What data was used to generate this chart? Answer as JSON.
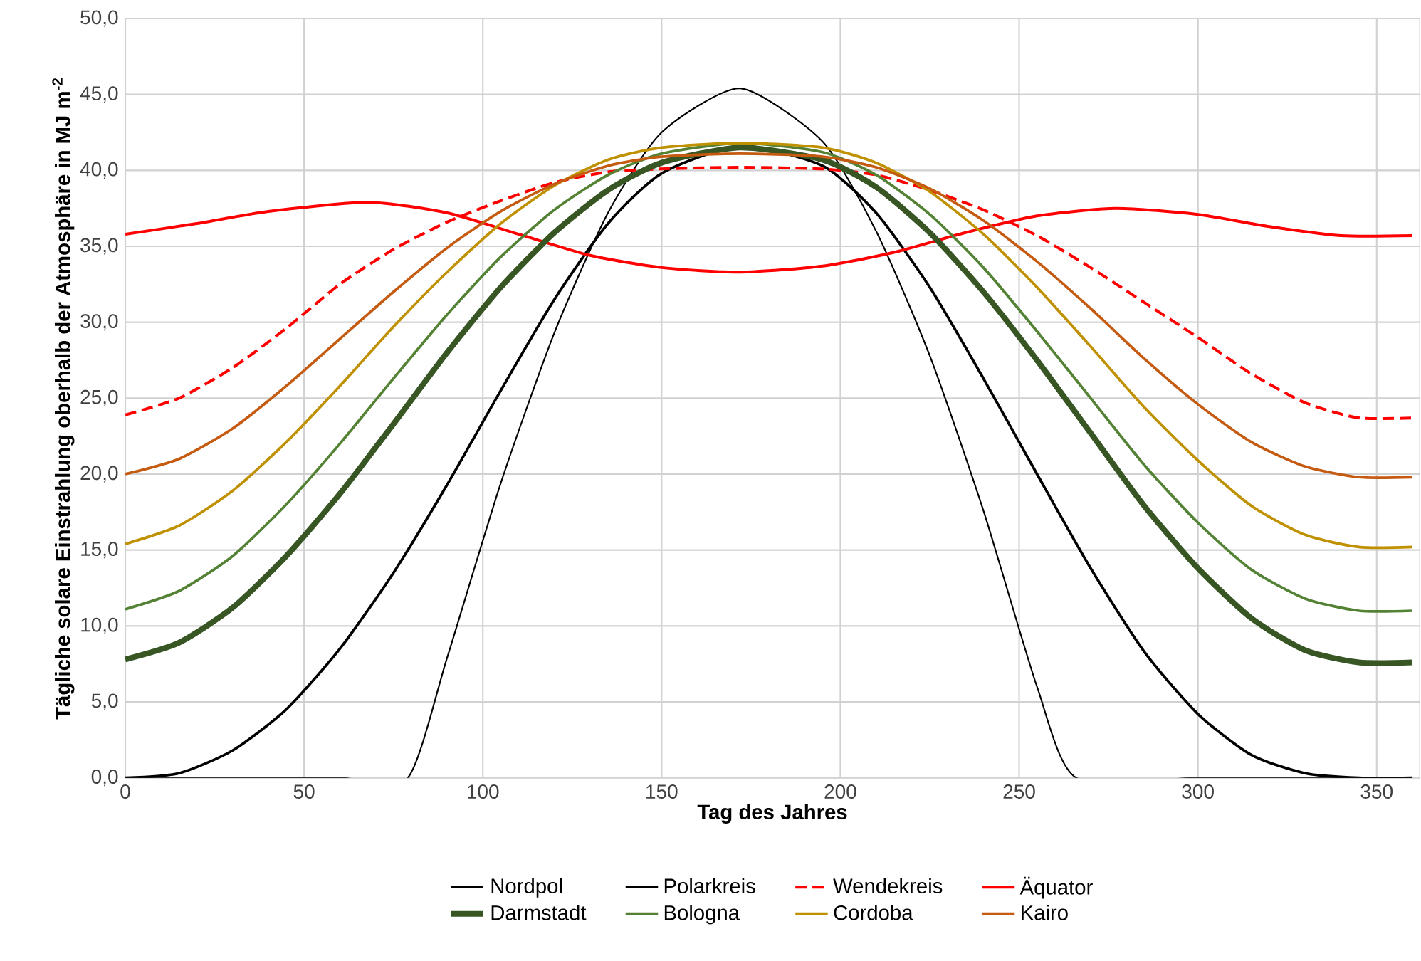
{
  "chart_data": {
    "type": "line",
    "xlabel": "Tag des Jahres",
    "ylabel": "Tägliche solare Einstrahlung oberhalb der Atmosphäre in MJ m$^{-2}$",
    "xlim": [
      0,
      362
    ],
    "ylim": [
      0,
      50
    ],
    "xticks": [
      0,
      50,
      100,
      150,
      200,
      250,
      300,
      350
    ],
    "yticks": [
      {
        "value": 0,
        "label": "0,0"
      },
      {
        "value": 5,
        "label": "5,0"
      },
      {
        "value": 10,
        "label": "10,0"
      },
      {
        "value": 15,
        "label": "15,0"
      },
      {
        "value": 20,
        "label": "20,0"
      },
      {
        "value": 25,
        "label": "25,0"
      },
      {
        "value": 30,
        "label": "30,0"
      },
      {
        "value": 35,
        "label": "35,0"
      },
      {
        "value": 40,
        "label": "40,0"
      },
      {
        "value": 45,
        "label": "45,0"
      },
      {
        "value": 50,
        "label": "50,0"
      }
    ],
    "grid": true,
    "legend": "bottom",
    "marker": "none",
    "series": [
      {
        "name": "Nordpol",
        "color": "#000000",
        "line_style": "solid",
        "x": [
          0,
          30,
          60,
          79,
          90,
          105,
          120,
          135,
          150,
          172,
          195,
          210,
          225,
          240,
          255,
          266,
          300,
          330,
          360
        ],
        "values": [
          0,
          0,
          0,
          0,
          7.9,
          19.4,
          29.3,
          37.2,
          42.5,
          45.4,
          41.9,
          36.0,
          27.8,
          17.6,
          6.0,
          0,
          0,
          0,
          0
        ]
      },
      {
        "name": "Polarkreis",
        "color": "#000000",
        "line_style": "solid",
        "x": [
          0,
          15,
          30,
          45,
          60,
          75,
          90,
          105,
          120,
          135,
          150,
          172,
          195,
          210,
          225,
          240,
          255,
          270,
          285,
          300,
          315,
          330,
          345,
          360
        ],
        "values": [
          0,
          0.3,
          1.8,
          4.5,
          8.5,
          13.5,
          19.3,
          25.5,
          31.5,
          36.5,
          39.8,
          41.6,
          40.3,
          37.2,
          32.3,
          26.3,
          20.0,
          13.8,
          8.3,
          4.2,
          1.5,
          0.3,
          0,
          0
        ]
      },
      {
        "name": "Wendekreis",
        "color": "#ff0000",
        "line_style": "dashed",
        "x": [
          0,
          15,
          30,
          45,
          60,
          75,
          90,
          105,
          120,
          135,
          150,
          172,
          195,
          210,
          225,
          240,
          255,
          270,
          285,
          300,
          315,
          330,
          345,
          360
        ],
        "values": [
          23.9,
          25.0,
          27.0,
          29.6,
          32.5,
          34.8,
          36.6,
          38.0,
          39.2,
          39.9,
          40.1,
          40.2,
          40.1,
          39.7,
          38.7,
          37.4,
          35.7,
          33.6,
          31.3,
          29.0,
          26.6,
          24.7,
          23.7,
          23.7
        ]
      },
      {
        "name": "Äquator",
        "color": "#ff0000",
        "line_style": "solid",
        "x": [
          0,
          20,
          40,
          68,
          90,
          110,
          130,
          150,
          172,
          195,
          215,
          235,
          255,
          277,
          300,
          320,
          340,
          360
        ],
        "values": [
          35.8,
          36.5,
          37.3,
          37.9,
          37.2,
          35.8,
          34.4,
          33.6,
          33.3,
          33.7,
          34.6,
          35.9,
          37.0,
          37.5,
          37.1,
          36.3,
          35.7,
          35.7
        ]
      },
      {
        "name": "Darmstadt",
        "color": "#375623",
        "line_style": "solid",
        "x": [
          0,
          15,
          30,
          45,
          60,
          75,
          90,
          105,
          120,
          135,
          150,
          172,
          195,
          210,
          225,
          240,
          255,
          270,
          285,
          300,
          315,
          330,
          345,
          360
        ],
        "values": [
          7.8,
          8.9,
          11.2,
          14.6,
          18.7,
          23.3,
          28.0,
          32.3,
          35.9,
          38.7,
          40.5,
          41.5,
          40.7,
          38.9,
          35.9,
          32.0,
          27.5,
          22.7,
          17.9,
          13.8,
          10.5,
          8.4,
          7.6,
          7.6
        ]
      },
      {
        "name": "Bologna",
        "color": "#548235",
        "line_style": "solid",
        "x": [
          0,
          15,
          30,
          45,
          60,
          75,
          90,
          105,
          120,
          135,
          150,
          172,
          195,
          210,
          225,
          240,
          255,
          270,
          285,
          300,
          315,
          330,
          345,
          360
        ],
        "values": [
          11.1,
          12.3,
          14.6,
          18.0,
          22.0,
          26.3,
          30.5,
          34.3,
          37.4,
          39.7,
          41.1,
          41.8,
          41.2,
          39.7,
          37.1,
          33.6,
          29.4,
          25.0,
          20.6,
          16.8,
          13.7,
          11.8,
          11.0,
          11.0
        ]
      },
      {
        "name": "Cordoba",
        "color": "#bf9000",
        "line_style": "solid",
        "x": [
          0,
          15,
          30,
          45,
          60,
          75,
          90,
          105,
          120,
          135,
          150,
          172,
          195,
          210,
          225,
          240,
          255,
          270,
          285,
          300,
          315,
          330,
          345,
          360
        ],
        "values": [
          15.4,
          16.6,
          18.9,
          22.1,
          25.8,
          29.7,
          33.3,
          36.5,
          39.0,
          40.7,
          41.5,
          41.8,
          41.5,
          40.5,
          38.6,
          35.8,
          32.3,
          28.4,
          24.4,
          20.9,
          17.9,
          16.0,
          15.2,
          15.2
        ]
      },
      {
        "name": "Kairo",
        "color": "#c55a11",
        "line_style": "solid",
        "x": [
          0,
          15,
          30,
          45,
          60,
          75,
          90,
          105,
          120,
          135,
          150,
          172,
          195,
          210,
          225,
          240,
          255,
          270,
          285,
          300,
          315,
          330,
          345,
          360
        ],
        "values": [
          20.0,
          21.0,
          23.0,
          25.8,
          28.9,
          32.0,
          34.9,
          37.3,
          39.1,
          40.3,
          40.9,
          41.1,
          40.9,
          40.2,
          38.8,
          36.7,
          34.0,
          30.9,
          27.6,
          24.6,
          22.1,
          20.5,
          19.8,
          19.8
        ]
      }
    ]
  }
}
